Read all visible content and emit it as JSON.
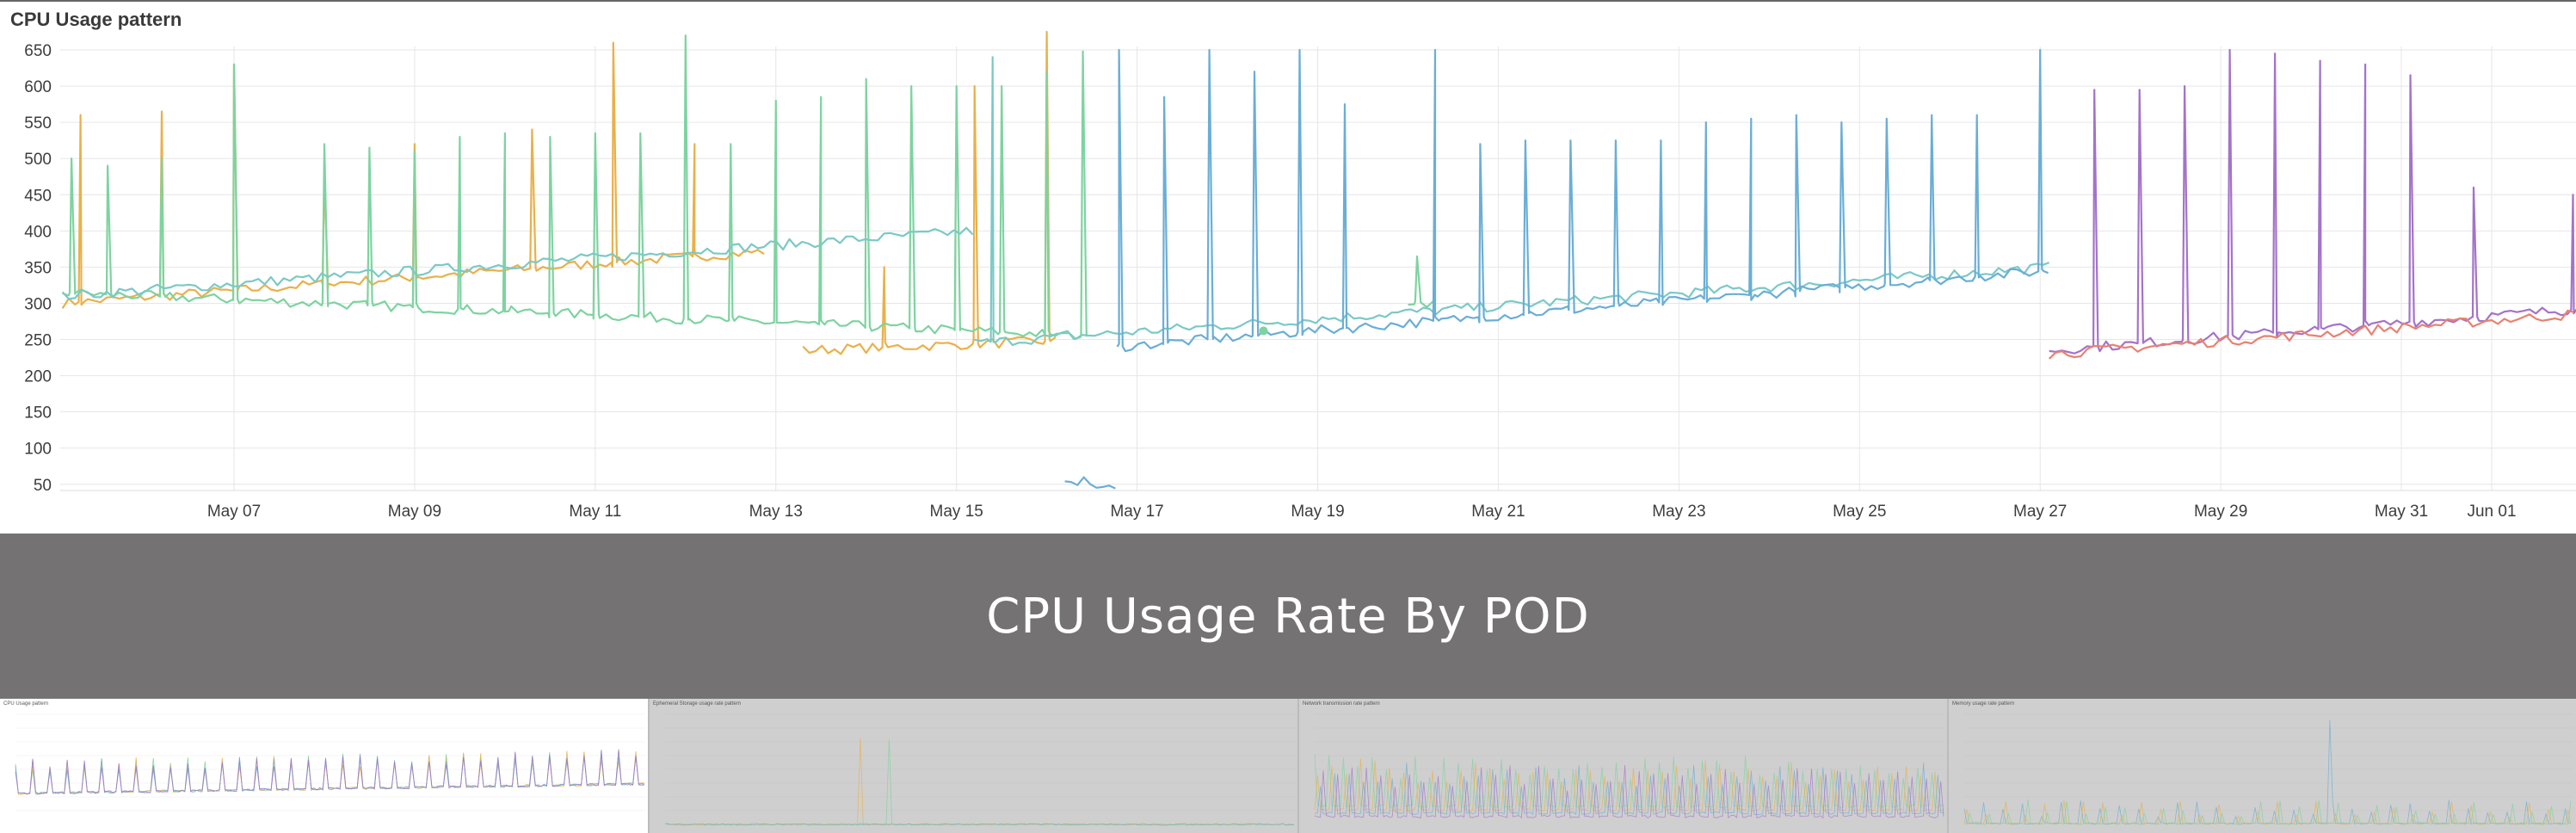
{
  "panel": {
    "title": "CPU Usage pattern"
  },
  "banner": {
    "text": "CPU Usage Rate By POD"
  },
  "thumbnails": [
    {
      "title": "CPU Usage pattern",
      "bg": "#ffffff"
    },
    {
      "title": "Ephemeral Storage usage rate pattern",
      "bg": "#cfcfcf"
    },
    {
      "title": "Network transmission rate pattern",
      "bg": "#cfcfcf"
    },
    {
      "title": "Memory usage rate pattern",
      "bg": "#cfcfcf"
    }
  ],
  "chart_data": {
    "type": "line",
    "title": "CPU Usage pattern",
    "x_start": "May 05",
    "x_end": "Jun 02",
    "xticks": [
      "May 07",
      "May 09",
      "May 11",
      "May 13",
      "May 15",
      "May 17",
      "May 19",
      "May 21",
      "May 23",
      "May 25",
      "May 27",
      "May 29",
      "May 31",
      "Jun 01"
    ],
    "yticks": [
      50,
      100,
      150,
      200,
      250,
      300,
      350,
      400,
      450,
      500,
      550,
      600,
      650
    ],
    "ylim": [
      30,
      690
    ],
    "grid": true,
    "colors": {
      "green": "#7ed3a0",
      "orange": "#eab04a",
      "blue": "#6aaed6",
      "teal": "#7bc9c6",
      "purple": "#a473c9",
      "red": "#e8826f"
    },
    "series": [
      {
        "color": "#eab04a",
        "segments": [
          {
            "start_day": 0.1,
            "end_day": 7.9,
            "base_start": 300,
            "base_end": 372,
            "spikes": [
              [
                0.3,
                560
              ],
              [
                1.2,
                565
              ],
              [
                2.0,
                630
              ],
              [
                3.0,
                480
              ],
              [
                4.0,
                520
              ],
              [
                5.3,
                540
              ],
              [
                6.2,
                660
              ],
              [
                7.1,
                520
              ]
            ]
          },
          {
            "start_day": 8.3,
            "end_day": 11.1,
            "base_start": 235,
            "base_end": 248,
            "spikes": [
              [
                9.2,
                350
              ],
              [
                10.2,
                600
              ],
              [
                11.0,
                675
              ]
            ]
          }
        ]
      },
      {
        "color": "#7ed3a0",
        "segments": [
          {
            "start_day": 0.1,
            "end_day": 11.5,
            "base_start": 315,
            "base_end": 255,
            "spikes": [
              [
                0.2,
                500
              ],
              [
                0.6,
                490
              ],
              [
                1.2,
                500
              ],
              [
                2.0,
                630
              ],
              [
                3.0,
                520
              ],
              [
                3.5,
                515
              ],
              [
                4.0,
                510
              ],
              [
                4.5,
                530
              ],
              [
                5.0,
                535
              ],
              [
                5.5,
                530
              ],
              [
                6.0,
                535
              ],
              [
                6.5,
                535
              ],
              [
                7.0,
                670
              ],
              [
                7.5,
                520
              ],
              [
                8.0,
                580
              ],
              [
                8.5,
                585
              ],
              [
                9.0,
                610
              ],
              [
                9.5,
                600
              ],
              [
                10.0,
                600
              ],
              [
                10.5,
                600
              ],
              [
                11.0,
                620
              ],
              [
                11.4,
                648
              ]
            ]
          },
          {
            "start_day": 15.0,
            "end_day": 15.3,
            "base_start": 305,
            "base_end": 300,
            "spikes": [
              [
                15.1,
                365
              ]
            ]
          }
        ]
      },
      {
        "color": "#7bc9c6",
        "segments": [
          {
            "start_day": 0.1,
            "end_day": 10.2,
            "base_start": 310,
            "base_end": 400,
            "spikes": []
          },
          {
            "start_day": 10.2,
            "end_day": 22.1,
            "base_start": 245,
            "base_end": 350,
            "spikes": [
              [
                10.4,
                640
              ]
            ]
          }
        ]
      },
      {
        "color": "#6aaed6",
        "segments": [
          {
            "start_day": 11.2,
            "end_day": 11.8,
            "base_start": 60,
            "base_end": 40,
            "spikes": []
          },
          {
            "start_day": 11.8,
            "end_day": 22.1,
            "base_start": 240,
            "base_end": 345,
            "spikes": [
              [
                11.8,
                650
              ],
              [
                12.3,
                585
              ],
              [
                12.8,
                650
              ],
              [
                13.3,
                620
              ],
              [
                13.8,
                650
              ],
              [
                14.3,
                575
              ],
              [
                15.3,
                650
              ],
              [
                15.8,
                520
              ],
              [
                16.3,
                525
              ],
              [
                16.8,
                525
              ],
              [
                17.3,
                525
              ],
              [
                17.8,
                525
              ],
              [
                18.3,
                550
              ],
              [
                18.8,
                555
              ],
              [
                19.3,
                560
              ],
              [
                19.8,
                550
              ],
              [
                20.3,
                555
              ],
              [
                20.8,
                560
              ],
              [
                21.3,
                560
              ],
              [
                22.0,
                650
              ]
            ]
          }
        ]
      },
      {
        "color": "#a473c9",
        "segments": [
          {
            "start_day": 22.1,
            "end_day": 27.95,
            "base_start": 235,
            "base_end": 292,
            "spikes": [
              [
                22.6,
                595
              ],
              [
                23.1,
                595
              ],
              [
                23.6,
                600
              ],
              [
                24.1,
                650
              ],
              [
                24.6,
                645
              ],
              [
                25.1,
                635
              ],
              [
                25.6,
                630
              ],
              [
                26.1,
                615
              ],
              [
                26.8,
                460
              ],
              [
                27.9,
                450
              ]
            ]
          }
        ]
      },
      {
        "color": "#e8826f",
        "segments": [
          {
            "start_day": 22.1,
            "end_day": 27.95,
            "base_start": 230,
            "base_end": 285,
            "spikes": []
          }
        ]
      }
    ]
  }
}
